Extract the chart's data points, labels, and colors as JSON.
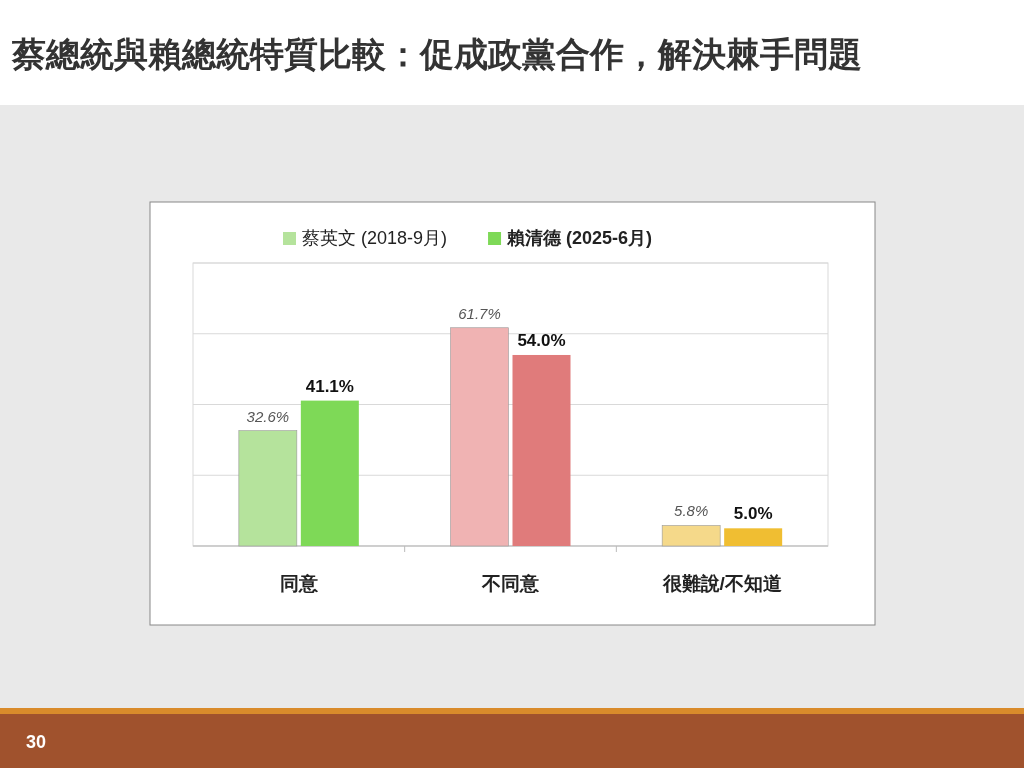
{
  "chart_data": {
    "type": "bar",
    "title": "蔡總統與賴總統特質比較：促成政黨合作，解決棘手問題",
    "categories": [
      "同意",
      "不同意",
      "很難說/不知道"
    ],
    "series": [
      {
        "name": "蔡英文 (2018-9月)",
        "color": "#b5e39c",
        "colors": [
          "#b5e39c",
          "#f0b3b3",
          "#f5d98a"
        ],
        "values": [
          32.6,
          61.7,
          5.8
        ],
        "value_labels": [
          "32.6%",
          "61.7%",
          "5.8%"
        ]
      },
      {
        "name": "賴清德 (2025-6月)",
        "color": "#7ed957",
        "colors": [
          "#7ed957",
          "#e07b7b",
          "#f0be32"
        ],
        "values": [
          41.1,
          54.0,
          5.0
        ],
        "value_labels": [
          "41.1%",
          "54.0%",
          "5.0%"
        ]
      }
    ],
    "ylim": [
      0,
      80
    ],
    "yticks": [
      {
        "value": 0,
        "label": null
      },
      {
        "value": 20,
        "label": null
      },
      {
        "value": 40,
        "label": null
      },
      {
        "value": 60,
        "label": null
      },
      {
        "value": 80,
        "label": null
      }
    ],
    "tick_labels": "x",
    "grid": "y",
    "legend": "top",
    "annotations": [
      "30"
    ]
  }
}
